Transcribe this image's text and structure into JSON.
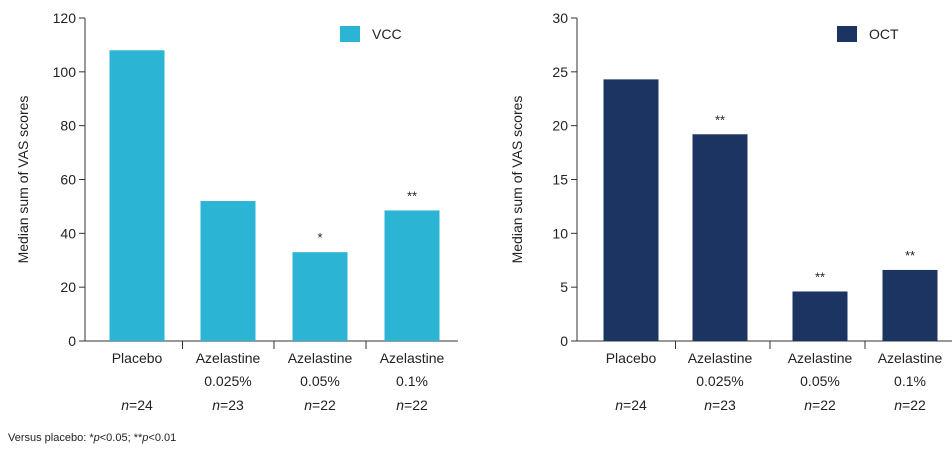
{
  "chart_data": [
    {
      "type": "bar",
      "ylabel": "Median sum of VAS scores",
      "ylim": [
        0,
        120
      ],
      "yticks": [
        "0",
        "20",
        "40",
        "60",
        "80",
        "100",
        "120"
      ],
      "color": "#2bb4d3",
      "legend": {
        "label": "VCC",
        "placement": "top-right"
      },
      "categories": [
        {
          "line1": "Placebo",
          "line2": "",
          "n": "24"
        },
        {
          "line1": "Azelastine",
          "line2": "0.025%",
          "n": "23"
        },
        {
          "line1": "Azelastine",
          "line2": "0.05%",
          "n": "22"
        },
        {
          "line1": "Azelastine",
          "line2": "0.1%",
          "n": "22"
        }
      ],
      "values": [
        108,
        52,
        33,
        48.5
      ],
      "annotations": [
        "",
        "",
        "*",
        "**"
      ]
    },
    {
      "type": "bar",
      "ylabel": "Median sum of VAS scores",
      "ylim": [
        0,
        30
      ],
      "yticks": [
        "0",
        "5",
        "10",
        "15",
        "20",
        "25",
        "30"
      ],
      "color": "#1c3461",
      "legend": {
        "label": "OCT",
        "placement": "top-right"
      },
      "categories": [
        {
          "line1": "Placebo",
          "line2": "",
          "n": "24"
        },
        {
          "line1": "Azelastine",
          "line2": "0.025%",
          "n": "23"
        },
        {
          "line1": "Azelastine",
          "line2": "0.05%",
          "n": "22"
        },
        {
          "line1": "Azelastine",
          "line2": "0.1%",
          "n": "22"
        }
      ],
      "values": [
        24.3,
        19.2,
        4.6,
        6.6
      ],
      "annotations": [
        "",
        "**",
        "**",
        "**"
      ]
    }
  ],
  "footnote": {
    "prefix": "Versus placebo: *",
    "p1": "p",
    "mid": "<0.05; **",
    "p2": "p",
    "suffix": "<0.01"
  },
  "n_prefix": "n"
}
